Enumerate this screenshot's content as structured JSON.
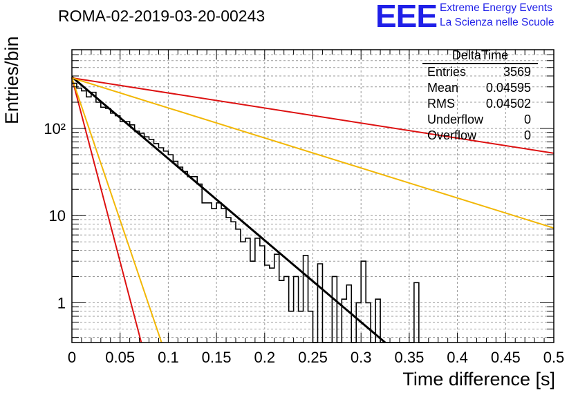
{
  "header": {
    "run_title": "ROMA-02-2019-03-20-00243",
    "logo_text": "EEE",
    "logo_line1": "Extreme Energy Events",
    "logo_line2": "La Scienza nelle Scuole"
  },
  "stats_box": {
    "title": "DeltaTime",
    "rows": [
      {
        "key": "Entries",
        "value": "3569"
      },
      {
        "key": "Mean",
        "value": "0.04595"
      },
      {
        "key": "RMS",
        "value": "0.04502"
      },
      {
        "key": "Underflow",
        "value": "0"
      },
      {
        "key": "Overflow",
        "value": "0"
      }
    ]
  },
  "colors": {
    "histogram": "#000000",
    "fit": "#000000",
    "red_curves": "#dd1111",
    "yellow_curves": "#f2b705",
    "grid": "#9a9a9a",
    "logo": "#1f1fe8"
  },
  "chart_data": {
    "type": "histogram",
    "xlabel": "Time difference [s]",
    "ylabel": "Entries/bin",
    "xlim": [
      0,
      0.5
    ],
    "ylim": [
      0.35,
      800
    ],
    "yscale": "log",
    "grid": true,
    "x_ticks": [
      0,
      0.05,
      0.1,
      0.15,
      0.2,
      0.25,
      0.3,
      0.35,
      0.4,
      0.45,
      0.5
    ],
    "x_tick_labels": [
      "0",
      "0.05",
      "0.1",
      "0.15",
      "0.2",
      "0.25",
      "0.3",
      "0.35",
      "0.4",
      "0.45",
      "0.5"
    ],
    "y_ticks": [
      1,
      10,
      100
    ],
    "y_tick_labels": [
      "1",
      "10",
      "10²"
    ],
    "bin_width": 0.005,
    "bin_start": 0,
    "counts": [
      330,
      290,
      270,
      230,
      260,
      200,
      175,
      170,
      150,
      140,
      120,
      120,
      110,
      93,
      88,
      80,
      75,
      67,
      60,
      55,
      50,
      42,
      36,
      32,
      28,
      28,
      23,
      14,
      14,
      12,
      14,
      12,
      9.5,
      8.5,
      7,
      5,
      5.5,
      3,
      5.5,
      4.5,
      2.7,
      2.5,
      3.6,
      1.8,
      2,
      0.8,
      2,
      0.8,
      3.5,
      0.8,
      0,
      2.8,
      0.3,
      0.3,
      2.0,
      0.3,
      1.1,
      1.6,
      0.3,
      1.0,
      3.0,
      1.0,
      0.3,
      1.1,
      0.3,
      0.3,
      0.3,
      0.3,
      0.3,
      0.3,
      0.3,
      1.7,
      0.3,
      0.3
    ],
    "series": [
      {
        "name": "fit",
        "style": "black",
        "x": [
          0,
          0.325
        ],
        "y": [
          390,
          0.35
        ]
      },
      {
        "style": "red",
        "x": [
          0,
          0.5
        ],
        "y": [
          380,
          52
        ]
      },
      {
        "style": "yellow",
        "x": [
          0,
          0.5
        ],
        "y": [
          380,
          7.2
        ]
      },
      {
        "style": "red",
        "x": [
          0,
          0.072
        ],
        "y": [
          380,
          0.35
        ]
      },
      {
        "style": "yellow",
        "x": [
          0,
          0.093
        ],
        "y": [
          380,
          0.35
        ]
      }
    ]
  }
}
